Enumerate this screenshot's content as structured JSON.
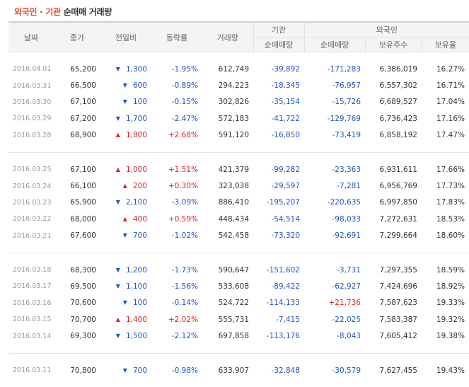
{
  "title": {
    "part1": "외국인",
    "sep": "·",
    "part2": "기관",
    "part3": "순매매 거래량"
  },
  "headers": {
    "date": "날짜",
    "close": "종가",
    "change": "전일비",
    "rate": "등락률",
    "volume": "거래량",
    "inst": "기관",
    "foreign": "외국인",
    "inst_net": "순매매량",
    "foreign_net": "순매매량",
    "holdings": "보유주수",
    "hold_ratio": "보유율"
  },
  "colors": {
    "up": "#e02020",
    "down": "#1d56c5",
    "accent": "#e8452c"
  },
  "icons": {
    "up": "▲",
    "down": "▼"
  },
  "groups": [
    [
      {
        "date": "2016.04.01",
        "close": "65,200",
        "dir": "down",
        "change": "1,300",
        "rate": "-1.95%",
        "volume": "612,749",
        "inst": "-39,892",
        "foreign": "-171,283",
        "holdings": "6,386,019",
        "ratio": "16.27%"
      },
      {
        "date": "2016.03.31",
        "close": "66,500",
        "dir": "down",
        "change": "600",
        "rate": "-0.89%",
        "volume": "294,223",
        "inst": "-18,345",
        "foreign": "-76,957",
        "holdings": "6,557,302",
        "ratio": "16.71%"
      },
      {
        "date": "2016.03.30",
        "close": "67,100",
        "dir": "down",
        "change": "100",
        "rate": "-0.15%",
        "volume": "302,826",
        "inst": "-35,154",
        "foreign": "-15,726",
        "holdings": "6,689,527",
        "ratio": "17.04%"
      },
      {
        "date": "2016.03.29",
        "close": "67,200",
        "dir": "down",
        "change": "1,700",
        "rate": "-2.47%",
        "volume": "572,183",
        "inst": "-41,722",
        "foreign": "-129,769",
        "holdings": "6,736,423",
        "ratio": "17.16%"
      },
      {
        "date": "2016.03.28",
        "close": "68,900",
        "dir": "up",
        "change": "1,800",
        "rate": "+2.68%",
        "volume": "591,120",
        "inst": "-16,850",
        "foreign": "-73,419",
        "holdings": "6,858,192",
        "ratio": "17.47%"
      }
    ],
    [
      {
        "date": "2016.03.25",
        "close": "67,100",
        "dir": "up",
        "change": "1,000",
        "rate": "+1.51%",
        "volume": "421,379",
        "inst": "-99,282",
        "foreign": "-23,363",
        "holdings": "6,931,611",
        "ratio": "17.66%"
      },
      {
        "date": "2016.03.24",
        "close": "66,100",
        "dir": "up",
        "change": "200",
        "rate": "+0.30%",
        "volume": "323,038",
        "inst": "-29,597",
        "foreign": "-7,281",
        "holdings": "6,956,769",
        "ratio": "17.73%"
      },
      {
        "date": "2016.03.23",
        "close": "65,900",
        "dir": "down",
        "change": "2,100",
        "rate": "-3.09%",
        "volume": "886,410",
        "inst": "-195,207",
        "foreign": "-220,635",
        "holdings": "6,997,850",
        "ratio": "17.83%"
      },
      {
        "date": "2016.03.22",
        "close": "68,000",
        "dir": "up",
        "change": "400",
        "rate": "+0.59%",
        "volume": "448,434",
        "inst": "-54,514",
        "foreign": "-98,033",
        "holdings": "7,272,631",
        "ratio": "18.53%"
      },
      {
        "date": "2016.03.21",
        "close": "67,600",
        "dir": "down",
        "change": "700",
        "rate": "-1.02%",
        "volume": "542,458",
        "inst": "-73,320",
        "foreign": "-92,691",
        "holdings": "7,299,664",
        "ratio": "18.60%"
      }
    ],
    [
      {
        "date": "2016.03.18",
        "close": "68,300",
        "dir": "down",
        "change": "1,200",
        "rate": "-1.73%",
        "volume": "590,647",
        "inst": "-151,602",
        "foreign": "-3,731",
        "holdings": "7,297,355",
        "ratio": "18.59%"
      },
      {
        "date": "2016.03.17",
        "close": "69,500",
        "dir": "down",
        "change": "1,100",
        "rate": "-1.56%",
        "volume": "533,608",
        "inst": "-89,422",
        "foreign": "-62,927",
        "holdings": "7,424,696",
        "ratio": "18.92%"
      },
      {
        "date": "2016.03.16",
        "close": "70,600",
        "dir": "down",
        "change": "100",
        "rate": "-0.14%",
        "volume": "524,722",
        "inst": "-114,133",
        "foreign": "+21,736",
        "holdings": "7,587,623",
        "ratio": "19.33%"
      },
      {
        "date": "2016.03.15",
        "close": "70,700",
        "dir": "up",
        "change": "1,400",
        "rate": "+2.02%",
        "volume": "555,731",
        "inst": "-7,415",
        "foreign": "-22,025",
        "holdings": "7,583,387",
        "ratio": "19.32%"
      },
      {
        "date": "2016.03.14",
        "close": "69,300",
        "dir": "down",
        "change": "1,500",
        "rate": "-2.12%",
        "volume": "697,858",
        "inst": "-113,176",
        "foreign": "-8,043",
        "holdings": "7,605,412",
        "ratio": "19.38%"
      }
    ],
    [
      {
        "date": "2016.03.11",
        "close": "70,800",
        "dir": "down",
        "change": "700",
        "rate": "-0.98%",
        "volume": "633,907",
        "inst": "-32,848",
        "foreign": "-30,579",
        "holdings": "7,627,455",
        "ratio": "19.43%"
      }
    ]
  ]
}
